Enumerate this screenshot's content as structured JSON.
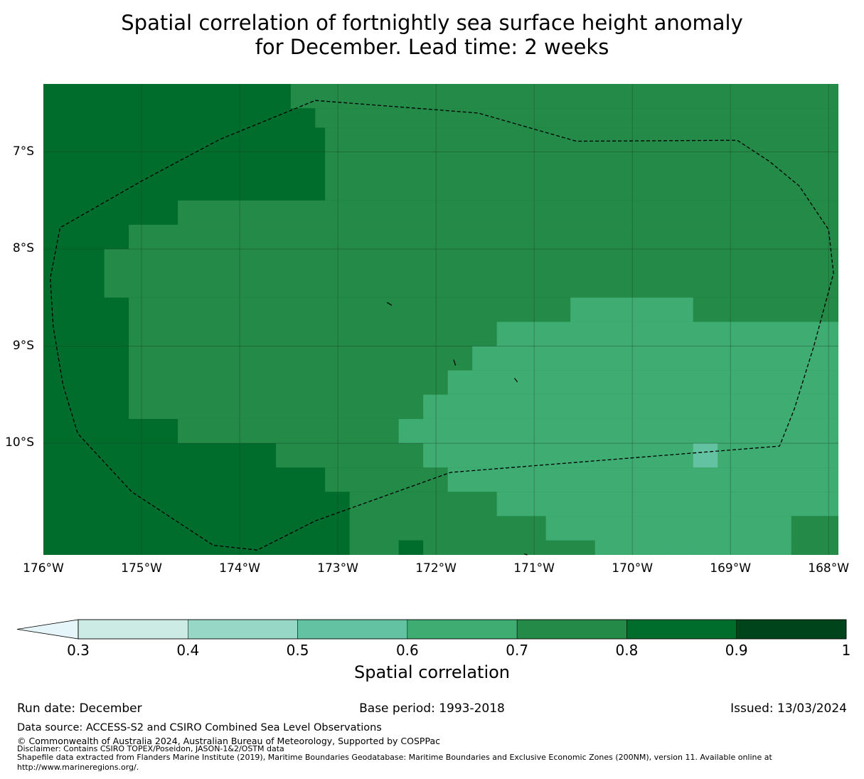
{
  "title": {
    "line1": "Spatial correlation of fortnightly sea surface height anomaly",
    "line2": "for December. Lead time: 2 weeks"
  },
  "map": {
    "lon_range": [
      -176,
      -167.9
    ],
    "lat_range": [
      -11.15,
      -6.3
    ],
    "lat_ticks": [
      {
        "value": -7,
        "label": "7°S"
      },
      {
        "value": -8,
        "label": "8°S"
      },
      {
        "value": -9,
        "label": "9°S"
      },
      {
        "value": -10,
        "label": "10°S"
      }
    ],
    "lon_ticks": [
      {
        "value": -176,
        "label": "176°W"
      },
      {
        "value": -175,
        "label": "175°W"
      },
      {
        "value": -174,
        "label": "174°W"
      },
      {
        "value": -173,
        "label": "173°W"
      },
      {
        "value": -172,
        "label": "172°W"
      },
      {
        "value": -171,
        "label": "171°W"
      },
      {
        "value": -170,
        "label": "170°W"
      },
      {
        "value": -169,
        "label": "169°W"
      },
      {
        "value": -168,
        "label": "168°W"
      }
    ],
    "grid": {
      "lon_start": -176.0,
      "lat_top": -6.3,
      "cell_deg": 0.25,
      "class_values": {
        "a": 0.85,
        "b": 0.75,
        "c": 0.65,
        "d": 0.55
      },
      "rows": [
        "aaaaaaaaaaaaaaaaaaaaaaaaaaaaaaaaaaaaaaaaaaaaaaaaaaaaaaaaaa",
        "aaaaaaaaaaaaaaaaaaaaaaaaaaaaaaaaaaaaaaaaaaaaaaaaaaaaaaaaaa",
        "aaaaaaaaaaaaaaaaaaaaaaaaaaaaaaaaaaaaaaaaaaaaaaaaaaaaaaaaaa",
        "aaaaaaaaaaaaaaaaaaaaaaaaaaaaaaaaaaaaaaaaaaaaaaaaaaaaaaaaaa",
        "aaaaaaaaaaaaaaaaaaaaaaaaaaaaaaaaaaaaaaaaaaaaaaaaaaaaaaaaaa",
        "aaaaaaaaaaaaaaaaaaaaaaaaaaaaaaaaaaaaaaaaaaaaaaaaaaaaaaaaaa",
        "aaaaaaaaaaaaaaaaaaaaaaaaaaaaaaaaaaaaaaaaaaaaaaaaaaaaaaaaaa",
        "aaaaaaaaaaaaaaaaaaaaaaaaaaaaaaaaaaaaaaaaaaaaaaaaaaaaaaaaaa",
        "aaaaaaaaaaaaaaaaaaaaaaaaaaaaaaaaaaaaaaaaaaaaaaaaaaaaaaaaaa",
        "aaaaaaaaaaaaaaaaaaaaaaaaaaaaaaaaaaaaaaaaaaaaaaaaaaaaaaaaaa",
        "aaaaaaaaaaaaaaaaaaaaaaaaaaaaaaaaaaaaaaaaaaaaaaaaaaaaaaaaaa",
        "aaaaaaaaaaaaaaaaaaaaaaaaaaaaaaaaaaaaaaaaaaaaaaaaaaaaaaaaaa",
        "aaaaaaaaaaaaaaaaaaaaaaaaaaaaaaaaaaaaaaaaaaaaaaaaaaaaaaaaaa",
        "aaaaaaaaaaaaaaaaaaaaaaaaaaaaaaaaaaaaaaaaaaaaaaaaaaaaaaaaaa",
        "aaaaaaaaaaaaaaaaaaaaaaaaaaaaaaaaaaaaaaaaaaaaaaaaaaaaaaaaaa",
        "aaaaaaaaaaaaaaaaaaaaaaaaaaaaaaaaaaaaaaaaaaaaaaaaaaaaaaaaaa",
        "aaaaaaaaaaaaaaaaaaaaaaaaaaaaaaaaaaaaaaaaaaaaaaaaaaaaaaaaaa",
        "aaaaaaaaaaaaaaaaaaaaaaaaaaaaaaaaaaaaaaaaaaaaaaaaaaaaaaaaaa",
        "aaaaaaaaaaaaaaaaaaaaaaaaaaaaaaaaaaaaaaaaaaaaaaaaaaaaaaaaaa",
        "aaaaaaaaaaaaaaaaaaaaaaaaaaaaaaaaaaaaaaaaaaaaaaaaaaaaaaaaaa"
      ],
      "regions": [
        {
          "lon": [
            -173.48,
            -167.9
          ],
          "lat": [
            -6.3,
            -6.55
          ],
          "cls": "b"
        },
        {
          "lon": [
            -173.23,
            -167.9
          ],
          "lat": [
            -6.55,
            -6.75
          ],
          "cls": "b"
        },
        {
          "lon": [
            -173.13,
            -167.9
          ],
          "lat": [
            -6.75,
            -7.5
          ],
          "cls": "b"
        },
        {
          "lon": [
            -174.63,
            -167.9
          ],
          "lat": [
            -7.5,
            -7.75
          ],
          "cls": "b"
        },
        {
          "lon": [
            -175.13,
            -167.9
          ],
          "lat": [
            -7.75,
            -8.0
          ],
          "cls": "b"
        },
        {
          "lon": [
            -175.38,
            -167.9
          ],
          "lat": [
            -8.0,
            -8.5
          ],
          "cls": "b"
        },
        {
          "lon": [
            -175.13,
            -167.9
          ],
          "lat": [
            -8.5,
            -9.75
          ],
          "cls": "b"
        },
        {
          "lon": [
            -174.63,
            -167.9
          ],
          "lat": [
            -9.75,
            -10.0
          ],
          "cls": "b"
        },
        {
          "lon": [
            -173.63,
            -167.9
          ],
          "lat": [
            -10.0,
            -10.25
          ],
          "cls": "b"
        },
        {
          "lon": [
            -173.13,
            -167.9
          ],
          "lat": [
            -10.25,
            -10.5
          ],
          "cls": "b"
        },
        {
          "lon": [
            -172.88,
            -167.9
          ],
          "lat": [
            -10.5,
            -11.15
          ],
          "cls": "b"
        },
        {
          "lon": [
            -170.63,
            -169.38
          ],
          "lat": [
            -8.5,
            -8.75
          ],
          "cls": "c"
        },
        {
          "lon": [
            -171.38,
            -167.9
          ],
          "lat": [
            -8.75,
            -9.0
          ],
          "cls": "c"
        },
        {
          "lon": [
            -171.63,
            -167.9
          ],
          "lat": [
            -9.0,
            -9.25
          ],
          "cls": "c"
        },
        {
          "lon": [
            -171.88,
            -167.9
          ],
          "lat": [
            -9.25,
            -9.5
          ],
          "cls": "c"
        },
        {
          "lon": [
            -172.13,
            -167.9
          ],
          "lat": [
            -9.5,
            -9.75
          ],
          "cls": "c"
        },
        {
          "lon": [
            -172.38,
            -167.9
          ],
          "lat": [
            -9.75,
            -10.0
          ],
          "cls": "c"
        },
        {
          "lon": [
            -172.13,
            -167.9
          ],
          "lat": [
            -10.0,
            -10.25
          ],
          "cls": "c"
        },
        {
          "lon": [
            -171.88,
            -167.9
          ],
          "lat": [
            -10.25,
            -10.5
          ],
          "cls": "c"
        },
        {
          "lon": [
            -171.38,
            -167.9
          ],
          "lat": [
            -10.5,
            -10.75
          ],
          "cls": "c"
        },
        {
          "lon": [
            -170.88,
            -167.9
          ],
          "lat": [
            -10.75,
            -11.0
          ],
          "cls": "c"
        },
        {
          "lon": [
            -170.38,
            -168.38
          ],
          "lat": [
            -11.0,
            -11.15
          ],
          "cls": "c"
        },
        {
          "lon": [
            -169.38,
            -169.13
          ],
          "lat": [
            -10.0,
            -10.25
          ],
          "cls": "d"
        },
        {
          "lon": [
            -168.38,
            -167.9
          ],
          "lat": [
            -10.75,
            -11.0
          ],
          "cls": "b"
        },
        {
          "lon": [
            -172.38,
            -172.13
          ],
          "lat": [
            -11.0,
            -11.15
          ],
          "cls": "a"
        },
        {
          "lon": [
            -169.63,
            -169.38
          ],
          "lat": [
            -11.0,
            -11.15
          ],
          "cls": "c"
        }
      ]
    },
    "eez_boundary": [
      [
        -173.23,
        -6.47
      ],
      [
        -171.57,
        -6.6
      ],
      [
        -170.57,
        -6.89
      ],
      [
        -168.93,
        -6.88
      ],
      [
        -168.6,
        -7.1
      ],
      [
        -168.3,
        -7.35
      ],
      [
        -168.0,
        -7.8
      ],
      [
        -167.95,
        -8.25
      ],
      [
        -168.15,
        -9.0
      ],
      [
        -168.35,
        -9.65
      ],
      [
        -168.5,
        -10.03
      ],
      [
        -171.85,
        -10.3
      ],
      [
        -173.23,
        -10.8
      ],
      [
        -173.82,
        -11.1
      ],
      [
        -174.27,
        -11.05
      ],
      [
        -175.1,
        -10.5
      ],
      [
        -175.65,
        -9.9
      ],
      [
        -175.8,
        -9.4
      ],
      [
        -175.9,
        -8.8
      ],
      [
        -175.93,
        -8.3
      ],
      [
        -175.83,
        -7.78
      ],
      [
        -175.0,
        -7.3
      ],
      [
        -174.2,
        -6.87
      ],
      [
        -173.23,
        -6.47
      ]
    ],
    "islands": [
      [
        [
          -172.5,
          -8.55
        ],
        [
          -172.45,
          -8.58
        ]
      ],
      [
        [
          -171.82,
          -9.14
        ],
        [
          -171.8,
          -9.2
        ]
      ],
      [
        [
          -171.2,
          -9.33
        ],
        [
          -171.17,
          -9.37
        ]
      ],
      [
        [
          -171.1,
          -11.14
        ],
        [
          -171.07,
          -11.15
        ]
      ]
    ]
  },
  "colorbar": {
    "boundaries": [
      0.3,
      0.4,
      0.5,
      0.6,
      0.7,
      0.8,
      0.9,
      1.0
    ],
    "tick_labels": [
      "0.3",
      "0.4",
      "0.5",
      "0.6",
      "0.7",
      "0.8",
      "0.9",
      "1"
    ],
    "colors": [
      "#cbebe4",
      "#97d7c5",
      "#62c2a1",
      "#3fac72",
      "#248a47",
      "#006d2c",
      "#00441b"
    ],
    "under_color": "#e5f5f9",
    "label": "Spatial correlation"
  },
  "footer": {
    "run_date": "Run date: December",
    "base_period": "Base period: 1993-2018",
    "issued": "Issued: 13/03/2024",
    "data_source": "Data source: ACCESS-S2 and CSIRO Combined Sea Level Observations",
    "copyright": "© Commonwealth of Australia 2024, Australian Bureau of Meteorology, Supported by COSPPac",
    "disclaimer": "Disclaimer: Contains CSIRO TOPEX/Poseidon, JASON-1&2/OSTM data",
    "shapefile_line1": "Shapefile data extracted from Flanders Marine Institute (2019), Maritime Boundaries Geodatabase: Maritime Boundaries and Exclusive Economic Zones (200NM), version 11. Available online at",
    "shapefile_line2": "http://www.marineregions.org/."
  }
}
